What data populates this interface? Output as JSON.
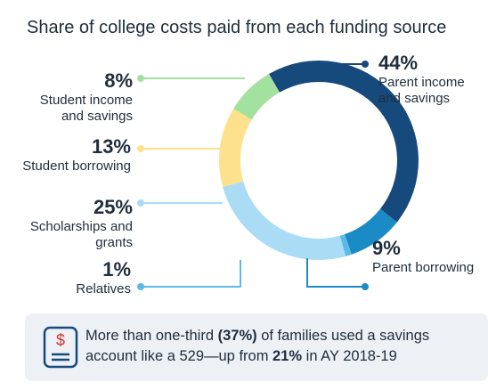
{
  "chart_data": {
    "type": "donut",
    "title": "Share of college costs paid from each funding source",
    "categories": [
      "Parent income and savings",
      "Parent borrowing",
      "Relatives",
      "Scholarships and grants",
      "Student borrowing",
      "Student income and savings"
    ],
    "values": [
      44,
      9,
      1,
      25,
      13,
      8
    ],
    "value_labels": [
      "44%",
      "9%",
      "1%",
      "25%",
      "13%",
      "8%"
    ],
    "colors": [
      "#174a7c",
      "#1b8bc6",
      "#5fb9e6",
      "#aadcf6",
      "#fde18d",
      "#a2e29e"
    ]
  },
  "callout": {
    "parts": [
      "More than one-third ",
      "(37%)",
      " of families used a savings account like a 529—up from ",
      "21%",
      " in AY 2018-19"
    ]
  }
}
